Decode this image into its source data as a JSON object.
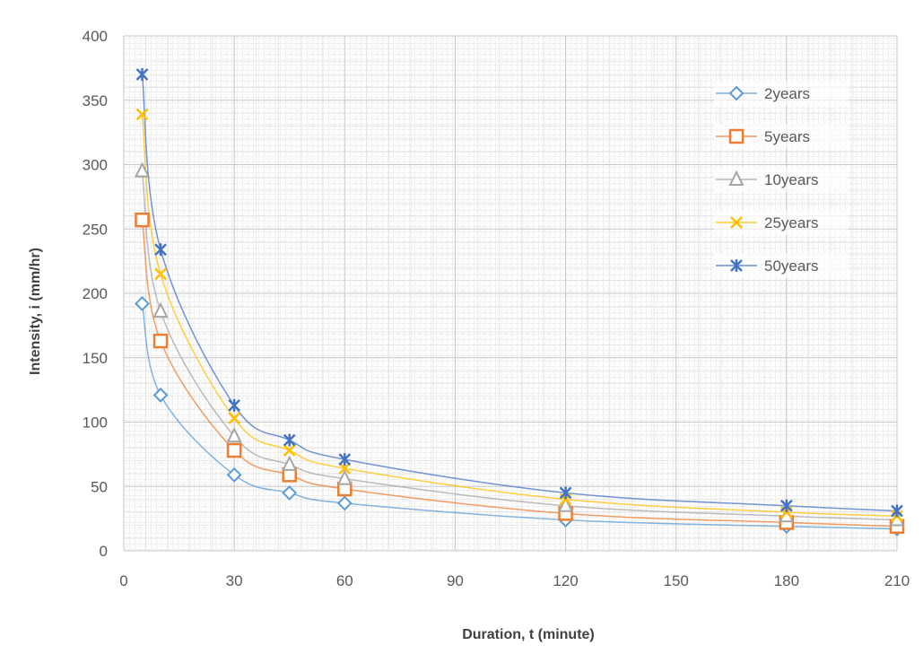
{
  "chart_data": {
    "type": "scatter",
    "title": "",
    "xlabel": "Duration, t (minute)",
    "ylabel": "Intensity, i (mm/hr)",
    "xlim": [
      0,
      210
    ],
    "ylim": [
      0,
      400
    ],
    "xticks": [
      "0",
      "30",
      "60",
      "90",
      "120",
      "150",
      "180",
      "210"
    ],
    "yticks": [
      "0",
      "50",
      "100",
      "150",
      "200",
      "250",
      "300",
      "350",
      "400"
    ],
    "x": [
      5,
      10,
      30,
      45,
      60,
      120,
      180,
      210
    ],
    "grid": true,
    "legend_position": "top-right",
    "series": [
      {
        "name": "2years",
        "marker": "diamond",
        "color": "#5B9BD5",
        "values": [
          192,
          121,
          59,
          45,
          37,
          24,
          19,
          17
        ]
      },
      {
        "name": "5years",
        "marker": "square",
        "color": "#ED7D31",
        "values": [
          257,
          163,
          78,
          59,
          48,
          29,
          22,
          19
        ]
      },
      {
        "name": "10years",
        "marker": "triangle",
        "color": "#A5A5A5",
        "values": [
          295,
          186,
          89,
          67,
          56,
          35,
          27,
          24
        ]
      },
      {
        "name": "25years",
        "marker": "x",
        "color": "#FFC000",
        "values": [
          339,
          215,
          103,
          78,
          64,
          40,
          30,
          27
        ]
      },
      {
        "name": "50years",
        "marker": "star",
        "color": "#4472C4",
        "values": [
          370,
          234,
          113,
          86,
          71,
          45,
          35,
          31
        ]
      }
    ]
  }
}
